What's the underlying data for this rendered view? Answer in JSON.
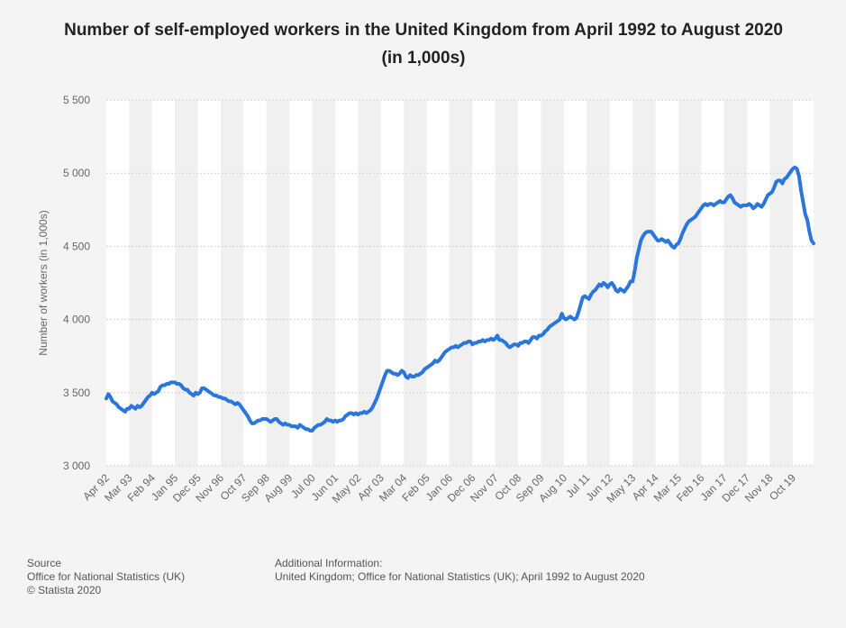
{
  "chart_data": {
    "type": "line",
    "title": "Number of self-employed workers in the United Kingdom from April 1992 to August 2020 (in 1,000s)",
    "y_label": "Number of workers (in 1,000s)",
    "color": "#2a76dd",
    "grid": true,
    "ylim": [
      3000,
      5500
    ],
    "yticks": [
      {
        "value": 3000,
        "label": "3 000"
      },
      {
        "value": 3500,
        "label": "3 500"
      },
      {
        "value": 4000,
        "label": "4 000"
      },
      {
        "value": 4500,
        "label": "4 500"
      },
      {
        "value": 5000,
        "label": "5 000"
      },
      {
        "value": 5500,
        "label": "5 500"
      }
    ],
    "categories": [
      "Apr 92",
      null,
      null,
      null,
      null,
      null,
      null,
      null,
      null,
      null,
      null,
      "Mar 93",
      null,
      null,
      null,
      null,
      null,
      null,
      null,
      null,
      null,
      null,
      "Feb 94",
      null,
      null,
      null,
      null,
      null,
      null,
      null,
      null,
      null,
      null,
      "Jan 95",
      null,
      null,
      null,
      null,
      null,
      null,
      null,
      null,
      null,
      null,
      "Dec 95",
      null,
      null,
      null,
      null,
      null,
      null,
      null,
      null,
      null,
      null,
      "Nov 96",
      null,
      null,
      null,
      null,
      null,
      null,
      null,
      null,
      null,
      null,
      "Oct 97",
      null,
      null,
      null,
      null,
      null,
      null,
      null,
      null,
      null,
      null,
      "Sep 98",
      null,
      null,
      null,
      null,
      null,
      null,
      null,
      null,
      null,
      null,
      "Aug 99",
      null,
      null,
      null,
      null,
      null,
      null,
      null,
      null,
      null,
      null,
      "Jul 00",
      null,
      null,
      null,
      null,
      null,
      null,
      null,
      null,
      null,
      null,
      "Jun 01",
      null,
      null,
      null,
      null,
      null,
      null,
      null,
      null,
      null,
      null,
      "May 02",
      null,
      null,
      null,
      null,
      null,
      null,
      null,
      null,
      null,
      null,
      "Apr 03",
      null,
      null,
      null,
      null,
      null,
      null,
      null,
      null,
      null,
      null,
      "Mar 04",
      null,
      null,
      null,
      null,
      null,
      null,
      null,
      null,
      null,
      null,
      "Feb 05",
      null,
      null,
      null,
      null,
      null,
      null,
      null,
      null,
      null,
      null,
      "Jan 06",
      null,
      null,
      null,
      null,
      null,
      null,
      null,
      null,
      null,
      null,
      "Dec 06",
      null,
      null,
      null,
      null,
      null,
      null,
      null,
      null,
      null,
      null,
      "Nov 07",
      null,
      null,
      null,
      null,
      null,
      null,
      null,
      null,
      null,
      null,
      "Oct 08",
      null,
      null,
      null,
      null,
      null,
      null,
      null,
      null,
      null,
      null,
      "Sep 09",
      null,
      null,
      null,
      null,
      null,
      null,
      null,
      null,
      null,
      null,
      "Aug 10",
      null,
      null,
      null,
      null,
      null,
      null,
      null,
      null,
      null,
      null,
      "Jul 11",
      null,
      null,
      null,
      null,
      null,
      null,
      null,
      null,
      null,
      null,
      "Jun 12",
      null,
      null,
      null,
      null,
      null,
      null,
      null,
      null,
      null,
      null,
      "May 13",
      null,
      null,
      null,
      null,
      null,
      null,
      null,
      null,
      null,
      null,
      "Apr 14",
      null,
      null,
      null,
      null,
      null,
      null,
      null,
      null,
      null,
      null,
      "Mar 15",
      null,
      null,
      null,
      null,
      null,
      null,
      null,
      null,
      null,
      null,
      "Feb 16",
      null,
      null,
      null,
      null,
      null,
      null,
      null,
      null,
      null,
      null,
      "Jan 17",
      null,
      null,
      null,
      null,
      null,
      null,
      null,
      null,
      null,
      null,
      "Dec 17",
      null,
      null,
      null,
      null,
      null,
      null,
      null,
      null,
      null,
      null,
      "Nov 18",
      null,
      null,
      null,
      null,
      null,
      null,
      null,
      null,
      null,
      null,
      "Oct 19",
      null,
      null,
      null,
      null,
      null,
      null,
      null,
      null,
      null,
      null
    ],
    "values": [
      3460,
      3490,
      3470,
      3440,
      3430,
      3420,
      3400,
      3390,
      3380,
      3370,
      3390,
      3390,
      3410,
      3400,
      3390,
      3410,
      3400,
      3410,
      3430,
      3450,
      3470,
      3480,
      3500,
      3490,
      3500,
      3510,
      3540,
      3550,
      3550,
      3560,
      3560,
      3570,
      3570,
      3570,
      3560,
      3560,
      3550,
      3530,
      3520,
      3520,
      3500,
      3490,
      3480,
      3500,
      3490,
      3500,
      3530,
      3530,
      3520,
      3510,
      3500,
      3490,
      3480,
      3480,
      3470,
      3470,
      3460,
      3460,
      3450,
      3440,
      3440,
      3430,
      3420,
      3430,
      3420,
      3400,
      3380,
      3360,
      3340,
      3310,
      3290,
      3290,
      3300,
      3310,
      3310,
      3320,
      3320,
      3320,
      3310,
      3300,
      3310,
      3320,
      3320,
      3300,
      3290,
      3280,
      3290,
      3280,
      3280,
      3270,
      3270,
      3270,
      3260,
      3280,
      3270,
      3260,
      3250,
      3250,
      3240,
      3240,
      3260,
      3270,
      3280,
      3280,
      3290,
      3300,
      3320,
      3310,
      3310,
      3300,
      3310,
      3300,
      3310,
      3310,
      3320,
      3340,
      3350,
      3360,
      3360,
      3350,
      3360,
      3350,
      3360,
      3360,
      3370,
      3360,
      3370,
      3380,
      3400,
      3430,
      3460,
      3500,
      3540,
      3580,
      3620,
      3650,
      3650,
      3640,
      3630,
      3630,
      3620,
      3630,
      3650,
      3640,
      3610,
      3600,
      3620,
      3610,
      3610,
      3620,
      3620,
      3630,
      3640,
      3660,
      3670,
      3680,
      3690,
      3700,
      3720,
      3710,
      3720,
      3740,
      3760,
      3780,
      3790,
      3800,
      3810,
      3810,
      3820,
      3810,
      3820,
      3830,
      3840,
      3840,
      3850,
      3850,
      3830,
      3840,
      3840,
      3850,
      3850,
      3860,
      3850,
      3860,
      3860,
      3870,
      3860,
      3870,
      3890,
      3860,
      3860,
      3850,
      3840,
      3820,
      3810,
      3820,
      3830,
      3830,
      3820,
      3840,
      3840,
      3850,
      3850,
      3840,
      3860,
      3880,
      3880,
      3870,
      3890,
      3890,
      3900,
      3920,
      3930,
      3950,
      3960,
      3970,
      3980,
      3990,
      4000,
      4040,
      4010,
      4000,
      4010,
      4020,
      4010,
      4000,
      4010,
      4050,
      4100,
      4150,
      4160,
      4150,
      4140,
      4170,
      4190,
      4200,
      4220,
      4240,
      4230,
      4250,
      4240,
      4220,
      4240,
      4250,
      4230,
      4200,
      4190,
      4210,
      4200,
      4190,
      4210,
      4230,
      4260,
      4260,
      4330,
      4420,
      4480,
      4540,
      4570,
      4590,
      4600,
      4600,
      4600,
      4580,
      4560,
      4540,
      4540,
      4550,
      4540,
      4530,
      4540,
      4520,
      4500,
      4490,
      4510,
      4520,
      4550,
      4590,
      4620,
      4650,
      4670,
      4680,
      4690,
      4700,
      4720,
      4740,
      4760,
      4780,
      4790,
      4780,
      4790,
      4790,
      4780,
      4790,
      4800,
      4810,
      4800,
      4800,
      4820,
      4840,
      4850,
      4830,
      4800,
      4790,
      4780,
      4770,
      4780,
      4780,
      4780,
      4790,
      4780,
      4760,
      4770,
      4790,
      4780,
      4770,
      4790,
      4820,
      4850,
      4860,
      4870,
      4900,
      4940,
      4950,
      4950,
      4930,
      4960,
      4970,
      4990,
      5010,
      5030,
      5040,
      5030,
      4980,
      4880,
      4800,
      4720,
      4680,
      4600,
      4540,
      4520
    ]
  },
  "footer": {
    "source_title": "Source",
    "source": "Office for National Statistics (UK)",
    "copyright": "© Statista 2020",
    "info_title": "Additional Information:",
    "info": "United Kingdom; Office for National Statistics (UK); April 1992 to August 2020"
  }
}
